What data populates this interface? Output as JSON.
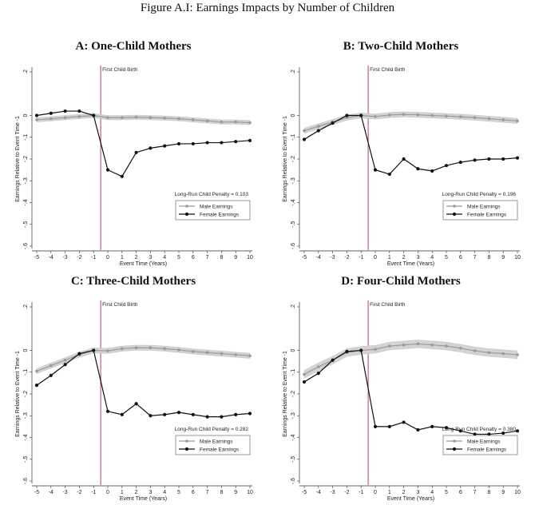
{
  "figure": {
    "title": "Figure A.I: Earnings Impacts by Number of Children"
  },
  "colors": {
    "male": "#9a9a9a",
    "male_band": "#d3d3d3",
    "female": "#111111",
    "event_line": "#c0607a",
    "axis": "#333333"
  },
  "chart_data": [
    {
      "type": "line",
      "title": "A: One-Child Mothers",
      "xlabel": "Event Time (Years)",
      "ylabel": "Earnings Relative to Event Time -1",
      "xlim": [
        -5,
        10
      ],
      "ylim": [
        -0.6,
        0.2
      ],
      "x": [
        -5,
        -4,
        -3,
        -2,
        -1,
        0,
        1,
        2,
        3,
        4,
        5,
        6,
        7,
        8,
        9,
        10
      ],
      "xticks": [
        "-5",
        "-4",
        "-3",
        "-2",
        "-1",
        "0",
        "1",
        "2",
        "3",
        "4",
        "5",
        "6",
        "7",
        "8",
        "9",
        "10"
      ],
      "yticks": [
        ".2",
        "0",
        "-.1",
        "-.2",
        "-.3",
        "-.4",
        "-.5",
        "-.6"
      ],
      "event_label": "First Child Birth",
      "penalty_label": "Long-Run Child Penalty = 0.103",
      "legend": "bottom-right",
      "series": [
        {
          "name": "Male Earnings",
          "values": [
            -0.02,
            -0.015,
            -0.01,
            -0.005,
            0,
            -0.01,
            -0.01,
            -0.008,
            -0.01,
            -0.012,
            -0.015,
            -0.02,
            -0.025,
            -0.03,
            -0.03,
            -0.033
          ],
          "band": 0.01
        },
        {
          "name": "Female Earnings",
          "values": [
            0,
            0.01,
            0.02,
            0.02,
            0,
            -0.25,
            -0.28,
            -0.17,
            -0.15,
            -0.14,
            -0.13,
            -0.13,
            -0.125,
            -0.125,
            -0.12,
            -0.115
          ]
        }
      ]
    },
    {
      "type": "line",
      "title": "B: Two-Child Mothers",
      "xlabel": "Event Time (Years)",
      "ylabel": "Earnings Relative to Event Time -1",
      "xlim": [
        -5,
        10
      ],
      "ylim": [
        -0.6,
        0.2
      ],
      "x": [
        -5,
        -4,
        -3,
        -2,
        -1,
        0,
        1,
        2,
        3,
        4,
        5,
        6,
        7,
        8,
        9,
        10
      ],
      "xticks": [
        "-5",
        "-4",
        "-3",
        "-2",
        "-1",
        "0",
        "1",
        "2",
        "3",
        "4",
        "5",
        "6",
        "7",
        "8",
        "9",
        "10"
      ],
      "yticks": [
        ".2",
        "0",
        "-.1",
        "-.2",
        "-.3",
        "-.4",
        "-.5",
        "-.6"
      ],
      "event_label": "First Child Birth",
      "penalty_label": "Long-Run Child Penalty = 0.196",
      "legend": "bottom-right",
      "series": [
        {
          "name": "Male Earnings",
          "values": [
            -0.07,
            -0.05,
            -0.03,
            -0.01,
            0,
            -0.005,
            0.002,
            0.005,
            0.003,
            0,
            -0.003,
            -0.006,
            -0.01,
            -0.015,
            -0.02,
            -0.025
          ],
          "band": 0.012
        },
        {
          "name": "Female Earnings",
          "values": [
            -0.11,
            -0.07,
            -0.035,
            0,
            0,
            -0.25,
            -0.27,
            -0.2,
            -0.245,
            -0.255,
            -0.23,
            -0.215,
            -0.205,
            -0.2,
            -0.2,
            -0.195
          ]
        }
      ]
    },
    {
      "type": "line",
      "title": "C: Three-Child Mothers",
      "xlabel": "Event Time (Years)",
      "ylabel": "Earnings Relative to Event Time -1",
      "xlim": [
        -5,
        10
      ],
      "ylim": [
        -0.6,
        0.2
      ],
      "x": [
        -5,
        -4,
        -3,
        -2,
        -1,
        0,
        1,
        2,
        3,
        4,
        5,
        6,
        7,
        8,
        9,
        10
      ],
      "xticks": [
        "-5",
        "-4",
        "-3",
        "-2",
        "-1",
        "0",
        "1",
        "2",
        "3",
        "4",
        "5",
        "6",
        "7",
        "8",
        "9",
        "10"
      ],
      "yticks": [
        ".2",
        "0",
        "-.1",
        "-.2",
        "-.3",
        "-.4",
        "-.5",
        "-.6"
      ],
      "event_label": "First Child Birth",
      "penalty_label": "Long-Run Child Penalty = 0.282",
      "legend": "bottom-right",
      "series": [
        {
          "name": "Male Earnings",
          "values": [
            -0.095,
            -0.07,
            -0.045,
            -0.02,
            0,
            -0.002,
            0.008,
            0.012,
            0.012,
            0.008,
            0.002,
            -0.005,
            -0.01,
            -0.015,
            -0.02,
            -0.025
          ],
          "band": 0.012
        },
        {
          "name": "Female Earnings",
          "values": [
            -0.16,
            -0.115,
            -0.065,
            -0.015,
            0,
            -0.28,
            -0.295,
            -0.245,
            -0.3,
            -0.295,
            -0.285,
            -0.295,
            -0.305,
            -0.305,
            -0.295,
            -0.29
          ]
        }
      ]
    },
    {
      "type": "line",
      "title": "D: Four-Child Mothers",
      "xlabel": "Event Time (Years)",
      "ylabel": "Earnings Relative to Event Time -1",
      "xlim": [
        -5,
        10
      ],
      "ylim": [
        -0.6,
        0.2
      ],
      "x": [
        -5,
        -4,
        -3,
        -2,
        -1,
        0,
        1,
        2,
        3,
        4,
        5,
        6,
        7,
        8,
        9,
        10
      ],
      "xticks": [
        "-5",
        "-4",
        "-3",
        "-2",
        "-1",
        "0",
        "1",
        "2",
        "3",
        "4",
        "5",
        "6",
        "7",
        "8",
        "9",
        "10"
      ],
      "yticks": [
        ".2",
        "0",
        "-.1",
        "-.2",
        "-.3",
        "-.4",
        "-.5",
        "-.6"
      ],
      "event_label": "First Child Birth",
      "penalty_label": "Long-Run Child Penalty = 0.380",
      "legend": "bottom-right",
      "series": [
        {
          "name": "Male Earnings",
          "values": [
            -0.11,
            -0.075,
            -0.045,
            -0.01,
            0,
            0.005,
            0.02,
            0.025,
            0.03,
            0.025,
            0.02,
            0.01,
            -0.002,
            -0.01,
            -0.015,
            -0.02
          ],
          "band": 0.018
        },
        {
          "name": "Female Earnings",
          "values": [
            -0.145,
            -0.105,
            -0.045,
            -0.005,
            0,
            -0.35,
            -0.35,
            -0.33,
            -0.365,
            -0.35,
            -0.355,
            -0.37,
            -0.385,
            -0.385,
            -0.38,
            -0.37
          ]
        }
      ]
    }
  ]
}
